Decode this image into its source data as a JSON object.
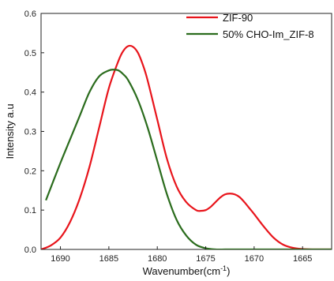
{
  "chart_data": {
    "type": "line",
    "title": "",
    "xlabel": "Wavenumber(cm",
    "xlabel_sup": "-1",
    "xlabel_close": ")",
    "ylabel": "Intensity a.u",
    "xlim": [
      1692,
      1662
    ],
    "ylim": [
      0,
      0.6
    ],
    "x_ticks": [
      1690,
      1685,
      1680,
      1675,
      1670,
      1665
    ],
    "y_ticks": [
      0.0,
      0.1,
      0.2,
      0.3,
      0.4,
      0.5,
      0.6
    ],
    "y_tick_labels": [
      "0.0",
      "0.1",
      "0.2",
      "0.3",
      "0.4",
      "0.5",
      "0.6"
    ],
    "legend_position": "top-right",
    "grid": false,
    "series": [
      {
        "name": "ZIF-90",
        "color": "#e8141b",
        "x": [
          1692,
          1691,
          1690,
          1689,
          1688,
          1687,
          1686,
          1685,
          1684,
          1683.5,
          1683,
          1682.5,
          1682,
          1681.5,
          1681,
          1680,
          1679,
          1678,
          1677,
          1676,
          1675.5,
          1675,
          1674.5,
          1674,
          1673.5,
          1673,
          1672.5,
          1672,
          1671.5,
          1671,
          1670.5,
          1670,
          1669,
          1668,
          1667,
          1666,
          1665,
          1664,
          1663,
          1662
        ],
        "values": [
          0.0,
          0.01,
          0.03,
          0.07,
          0.13,
          0.21,
          0.31,
          0.41,
          0.48,
          0.505,
          0.517,
          0.515,
          0.5,
          0.47,
          0.43,
          0.33,
          0.23,
          0.16,
          0.12,
          0.1,
          0.098,
          0.1,
          0.108,
          0.12,
          0.132,
          0.14,
          0.142,
          0.14,
          0.133,
          0.12,
          0.105,
          0.09,
          0.058,
          0.03,
          0.012,
          0.004,
          0.001,
          0.0,
          0.0,
          0.0
        ]
      },
      {
        "name": "50% CHO-Im_ZIF-8",
        "color": "#2b6c1d",
        "x": [
          1691.5,
          1690,
          1689,
          1688,
          1687,
          1686,
          1685,
          1684.5,
          1684,
          1683.5,
          1683,
          1682,
          1681,
          1680,
          1679,
          1678,
          1677,
          1676,
          1675,
          1674,
          1673,
          1672,
          1670,
          1668,
          1666,
          1664,
          1662
        ],
        "values": [
          0.125,
          0.22,
          0.28,
          0.34,
          0.4,
          0.44,
          0.455,
          0.457,
          0.455,
          0.445,
          0.43,
          0.38,
          0.31,
          0.225,
          0.14,
          0.075,
          0.035,
          0.012,
          0.003,
          0.0,
          0.0,
          0.0,
          0.0,
          0.0,
          0.0,
          0.0,
          0.0
        ]
      }
    ]
  }
}
